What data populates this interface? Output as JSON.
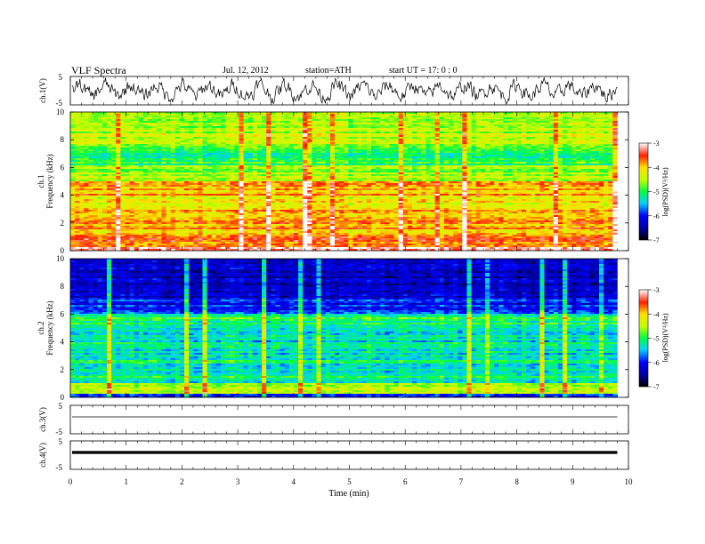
{
  "header": {
    "title": "VLF  Spectra",
    "date": "Jul.  12, 2012",
    "station": "station=ATH",
    "start": "start  UT  =    17: 0  : 0"
  },
  "chart_data": [
    {
      "type": "line",
      "name": "ch1-waveform",
      "ylabel": "ch.1(V)",
      "ylim": [
        -5,
        5
      ],
      "yticks": [
        "5",
        "-5"
      ],
      "xlim": [
        0,
        10
      ]
    },
    {
      "type": "heatmap",
      "name": "ch1-spectrogram",
      "ylabel": "ch.1",
      "ylabel2": "Frequency  (kHz)",
      "ylim": [
        0,
        10
      ],
      "yticks": [
        "0",
        "2",
        "4",
        "6",
        "8",
        "10"
      ],
      "xlim": [
        0,
        9.8
      ],
      "colorbar": {
        "label": "log(PSD)(V²/Hz)",
        "range": [
          -7,
          -3
        ],
        "ticks": [
          "-7",
          "-6",
          "-5",
          "-4",
          "-3"
        ]
      },
      "bands": [
        {
          "f": [
            0.0,
            0.3
          ],
          "level": -3.2
        },
        {
          "f": [
            0.3,
            1.2
          ],
          "level": -3.6
        },
        {
          "f": [
            1.2,
            3.0
          ],
          "level": -3.9
        },
        {
          "f": [
            3.0,
            4.0
          ],
          "level": -4.2
        },
        {
          "f": [
            4.0,
            5.0
          ],
          "level": -3.9
        },
        {
          "f": [
            5.0,
            6.2
          ],
          "level": -4.6
        },
        {
          "f": [
            6.2,
            7.6
          ],
          "level": -5.0
        },
        {
          "f": [
            7.6,
            10.0
          ],
          "level": -4.5
        }
      ]
    },
    {
      "type": "heatmap",
      "name": "ch2-spectrogram",
      "ylabel": "ch.2",
      "ylabel2": "Frequency  (kHz)",
      "ylim": [
        0,
        10
      ],
      "yticks": [
        "0",
        "2",
        "4",
        "6",
        "8",
        "10"
      ],
      "xlim": [
        0,
        9.8
      ],
      "colorbar": {
        "label": "log(PSD)(V²/Hz)",
        "range": [
          -7,
          -3
        ],
        "ticks": [
          "-7",
          "-6",
          "-5",
          "-4",
          "-3"
        ]
      },
      "bands": [
        {
          "f": [
            0.0,
            0.3
          ],
          "level": -5.9
        },
        {
          "f": [
            0.3,
            1.0
          ],
          "level": -4.6
        },
        {
          "f": [
            1.0,
            3.0
          ],
          "level": -5.2
        },
        {
          "f": [
            3.0,
            5.0
          ],
          "level": -5.3
        },
        {
          "f": [
            5.0,
            6.0
          ],
          "level": -5.1
        },
        {
          "f": [
            6.0,
            7.0
          ],
          "level": -6.0
        },
        {
          "f": [
            7.0,
            10.0
          ],
          "level": -6.3
        }
      ]
    },
    {
      "type": "line",
      "name": "ch3-waveform",
      "ylabel": "ch.3(V)",
      "ylim": [
        -5,
        5
      ],
      "yticks": [
        "5",
        "-5"
      ],
      "level": 0,
      "xlim": [
        0,
        9.8
      ]
    },
    {
      "type": "line",
      "name": "ch4-waveform",
      "ylabel": "ch.4(V)",
      "ylim": [
        -5,
        5
      ],
      "yticks": [
        "5",
        "-5"
      ],
      "level": 0,
      "xlim": [
        0,
        9.8
      ]
    }
  ],
  "xaxis": {
    "label": "Time  (min)",
    "ticks": [
      "0",
      "1",
      "2",
      "3",
      "4",
      "5",
      "6",
      "7",
      "8",
      "9",
      "10"
    ],
    "range": [
      0,
      10
    ]
  }
}
